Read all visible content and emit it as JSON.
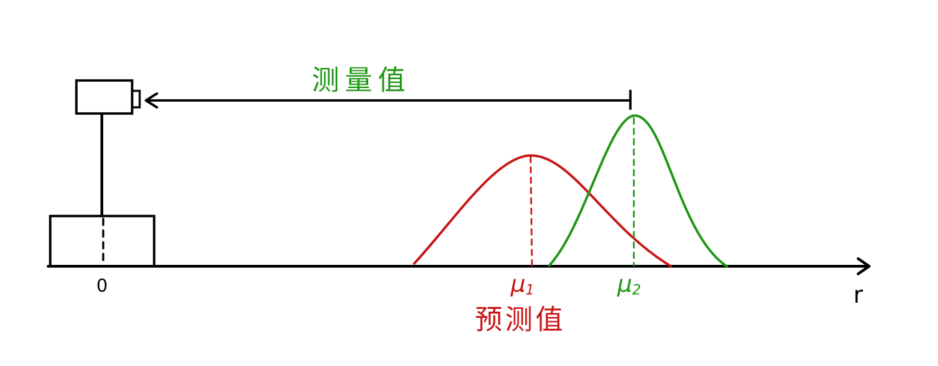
{
  "labels": {
    "measurement": "测量值",
    "prediction": "预测值",
    "origin": "0",
    "axis": "r",
    "mu1_base": "μ",
    "mu1_sub": "1",
    "mu2_base": "μ",
    "mu2_sub": "2"
  },
  "colors": {
    "ink": "#000000",
    "prediction": "#c81414",
    "measurement": "#1e9614"
  }
}
